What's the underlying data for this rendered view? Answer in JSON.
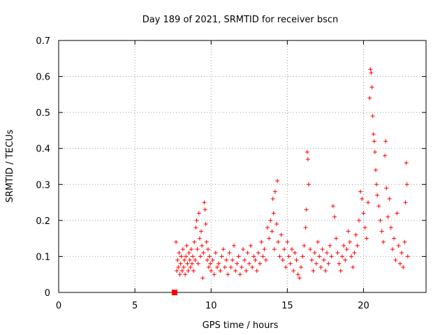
{
  "chart_data": {
    "type": "scatter",
    "title": "Day 189 of 2021, SRMTID for receiver bscn",
    "xlabel": "GPS time / hours",
    "ylabel": "SRMTID / TECUs",
    "xlim": [
      0,
      24.1
    ],
    "ylim": [
      0,
      0.7
    ],
    "x_ticks": [
      0,
      5,
      10,
      15,
      20
    ],
    "y_ticks": [
      0,
      0.1,
      0.2,
      0.3,
      0.4,
      0.5,
      0.6,
      0.7
    ],
    "grid": true,
    "marker": "+",
    "color": "#ff0000",
    "zero_marker": {
      "x": 7.6,
      "y": 0.0
    },
    "series": [
      {
        "name": "bscn",
        "points": [
          [
            7.7,
            0.14
          ],
          [
            7.75,
            0.06
          ],
          [
            7.8,
            0.09
          ],
          [
            7.85,
            0.07
          ],
          [
            7.9,
            0.11
          ],
          [
            7.95,
            0.05
          ],
          [
            8.0,
            0.08
          ],
          [
            8.05,
            0.1
          ],
          [
            8.1,
            0.06
          ],
          [
            8.15,
            0.12
          ],
          [
            8.2,
            0.07
          ],
          [
            8.25,
            0.09
          ],
          [
            8.3,
            0.05
          ],
          [
            8.35,
            0.1
          ],
          [
            8.4,
            0.13
          ],
          [
            8.45,
            0.08
          ],
          [
            8.5,
            0.06
          ],
          [
            8.55,
            0.11
          ],
          [
            8.6,
            0.09
          ],
          [
            8.65,
            0.07
          ],
          [
            8.7,
            0.12
          ],
          [
            8.75,
            0.08
          ],
          [
            8.8,
            0.1
          ],
          [
            8.85,
            0.06
          ],
          [
            8.9,
            0.14
          ],
          [
            8.95,
            0.09
          ],
          [
            9.0,
            0.18
          ],
          [
            9.05,
            0.2
          ],
          [
            9.1,
            0.12
          ],
          [
            9.15,
            0.08
          ],
          [
            9.2,
            0.22
          ],
          [
            9.25,
            0.15
          ],
          [
            9.3,
            0.1
          ],
          [
            9.35,
            0.17
          ],
          [
            9.4,
            0.13
          ],
          [
            9.45,
            0.04
          ],
          [
            9.5,
            0.11
          ],
          [
            9.55,
            0.25
          ],
          [
            9.6,
            0.23
          ],
          [
            9.65,
            0.19
          ],
          [
            9.7,
            0.14
          ],
          [
            9.75,
            0.09
          ],
          [
            9.8,
            0.12
          ],
          [
            9.85,
            0.07
          ],
          [
            9.9,
            0.1
          ],
          [
            9.95,
            0.08
          ],
          [
            10.0,
            0.06
          ],
          [
            10.1,
            0.09
          ],
          [
            10.2,
            0.05
          ],
          [
            10.3,
            0.11
          ],
          [
            10.4,
            0.07
          ],
          [
            10.5,
            0.08
          ],
          [
            10.6,
            0.06
          ],
          [
            10.7,
            0.1
          ],
          [
            10.8,
            0.12
          ],
          [
            10.9,
            0.07
          ],
          [
            11.0,
            0.09
          ],
          [
            11.1,
            0.05
          ],
          [
            11.2,
            0.11
          ],
          [
            11.3,
            0.07
          ],
          [
            11.4,
            0.09
          ],
          [
            11.5,
            0.13
          ],
          [
            11.6,
            0.06
          ],
          [
            11.7,
            0.08
          ],
          [
            11.8,
            0.1
          ],
          [
            11.9,
            0.05
          ],
          [
            12.0,
            0.07
          ],
          [
            12.1,
            0.12
          ],
          [
            12.2,
            0.09
          ],
          [
            12.3,
            0.06
          ],
          [
            12.4,
            0.11
          ],
          [
            12.5,
            0.08
          ],
          [
            12.6,
            0.13
          ],
          [
            12.7,
            0.07
          ],
          [
            12.8,
            0.1
          ],
          [
            12.9,
            0.09
          ],
          [
            13.0,
            0.06
          ],
          [
            13.1,
            0.11
          ],
          [
            13.2,
            0.08
          ],
          [
            13.3,
            0.14
          ],
          [
            13.4,
            0.1
          ],
          [
            13.5,
            0.12
          ],
          [
            13.6,
            0.09
          ],
          [
            13.7,
            0.18
          ],
          [
            13.8,
            0.15
          ],
          [
            13.9,
            0.2
          ],
          [
            14.0,
            0.17
          ],
          [
            14.05,
            0.26
          ],
          [
            14.1,
            0.22
          ],
          [
            14.15,
            0.12
          ],
          [
            14.2,
            0.28
          ],
          [
            14.3,
            0.19
          ],
          [
            14.35,
            0.31
          ],
          [
            14.4,
            0.14
          ],
          [
            14.5,
            0.1
          ],
          [
            14.6,
            0.16
          ],
          [
            14.7,
            0.09
          ],
          [
            14.8,
            0.12
          ],
          [
            14.9,
            0.07
          ],
          [
            15.0,
            0.14
          ],
          [
            15.1,
            0.1
          ],
          [
            15.2,
            0.08
          ],
          [
            15.3,
            0.12
          ],
          [
            15.4,
            0.06
          ],
          [
            15.5,
            0.11
          ],
          [
            15.6,
            0.09
          ],
          [
            15.7,
            0.05
          ],
          [
            15.8,
            0.04
          ],
          [
            15.9,
            0.07
          ],
          [
            16.0,
            0.1
          ],
          [
            16.1,
            0.13
          ],
          [
            16.2,
            0.18
          ],
          [
            16.25,
            0.23
          ],
          [
            16.3,
            0.39
          ],
          [
            16.35,
            0.37
          ],
          [
            16.4,
            0.3
          ],
          [
            16.5,
            0.12
          ],
          [
            16.6,
            0.09
          ],
          [
            16.7,
            0.06
          ],
          [
            16.8,
            0.11
          ],
          [
            16.9,
            0.08
          ],
          [
            17.0,
            0.14
          ],
          [
            17.1,
            0.1
          ],
          [
            17.2,
            0.07
          ],
          [
            17.3,
            0.12
          ],
          [
            17.4,
            0.09
          ],
          [
            17.5,
            0.06
          ],
          [
            17.6,
            0.11
          ],
          [
            17.7,
            0.08
          ],
          [
            17.8,
            0.13
          ],
          [
            17.9,
            0.1
          ],
          [
            18.0,
            0.24
          ],
          [
            18.1,
            0.21
          ],
          [
            18.2,
            0.15
          ],
          [
            18.3,
            0.11
          ],
          [
            18.4,
            0.08
          ],
          [
            18.5,
            0.06
          ],
          [
            18.6,
            0.1
          ],
          [
            18.7,
            0.13
          ],
          [
            18.8,
            0.09
          ],
          [
            18.9,
            0.12
          ],
          [
            19.0,
            0.17
          ],
          [
            19.1,
            0.14
          ],
          [
            19.2,
            0.1
          ],
          [
            19.3,
            0.07
          ],
          [
            19.4,
            0.11
          ],
          [
            19.5,
            0.16
          ],
          [
            19.6,
            0.13
          ],
          [
            19.7,
            0.2
          ],
          [
            19.8,
            0.28
          ],
          [
            19.9,
            0.26
          ],
          [
            20.0,
            0.22
          ],
          [
            20.1,
            0.18
          ],
          [
            20.2,
            0.15
          ],
          [
            20.3,
            0.25
          ],
          [
            20.4,
            0.54
          ],
          [
            20.45,
            0.62
          ],
          [
            20.5,
            0.61
          ],
          [
            20.55,
            0.57
          ],
          [
            20.6,
            0.49
          ],
          [
            20.65,
            0.44
          ],
          [
            20.7,
            0.42
          ],
          [
            20.75,
            0.39
          ],
          [
            20.8,
            0.34
          ],
          [
            20.85,
            0.3
          ],
          [
            20.9,
            0.27
          ],
          [
            21.0,
            0.24
          ],
          [
            21.1,
            0.2
          ],
          [
            21.2,
            0.17
          ],
          [
            21.3,
            0.14
          ],
          [
            21.4,
            0.38
          ],
          [
            21.45,
            0.42
          ],
          [
            21.5,
            0.29
          ],
          [
            21.6,
            0.21
          ],
          [
            21.7,
            0.26
          ],
          [
            21.8,
            0.18
          ],
          [
            21.9,
            0.12
          ],
          [
            22.0,
            0.15
          ],
          [
            22.1,
            0.09
          ],
          [
            22.2,
            0.22
          ],
          [
            22.3,
            0.13
          ],
          [
            22.4,
            0.08
          ],
          [
            22.5,
            0.11
          ],
          [
            22.6,
            0.07
          ],
          [
            22.7,
            0.14
          ],
          [
            22.75,
            0.25
          ],
          [
            22.8,
            0.36
          ],
          [
            22.85,
            0.3
          ],
          [
            22.9,
            0.1
          ]
        ]
      }
    ]
  }
}
